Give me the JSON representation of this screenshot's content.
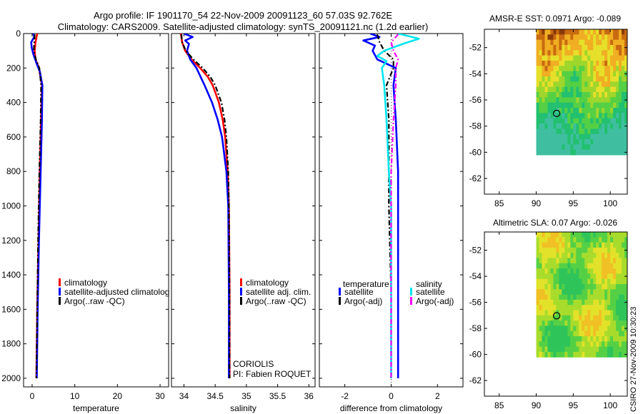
{
  "header": {
    "title_line1": "Argo profile: IF 1901170_54 22-Nov-2009 20091123_60 57.03S 92.762E",
    "title_line2": "Climatology: CARS2009. Satellite-adjusted climatology: synTS_20091121.nc (1.2d earlier)"
  },
  "side_stamp": "CSIRO 27-Nov-2009 10:30:23",
  "chart_data": [
    {
      "id": "temp",
      "type": "line",
      "xlabel": "temperature",
      "xlim": [
        -2,
        32
      ],
      "ylim": [
        2050,
        0
      ],
      "xticks": [
        0,
        10,
        20,
        30
      ],
      "yticks": [
        0,
        200,
        400,
        600,
        800,
        1000,
        1200,
        1400,
        1600,
        1800,
        2000
      ],
      "legend": [
        "climatology",
        "satellite-adjusted climatolog",
        "Argo(..raw -QC)"
      ],
      "legend_colors": [
        "#ff0000",
        "#0000ff",
        "#000000"
      ],
      "series": [
        {
          "name": "climatology",
          "color": "#ff0000",
          "dash": false,
          "depth": [
            0,
            25,
            50,
            100,
            150,
            200,
            300,
            500,
            800,
            1200,
            1600,
            2000
          ],
          "values": [
            1.2,
            1.0,
            0.8,
            0.6,
            0.8,
            1.6,
            2.3,
            2.1,
            1.8,
            1.5,
            1.2,
            1.0
          ]
        },
        {
          "name": "satellite-adjusted climatolog",
          "color": "#0000ff",
          "dash": false,
          "depth": [
            0,
            20,
            50,
            80,
            120,
            170,
            220,
            300,
            500,
            800,
            1200,
            1600,
            2000
          ],
          "values": [
            0.3,
            0.5,
            -0.2,
            -0.1,
            0.3,
            1.0,
            1.8,
            2.4,
            2.3,
            2.0,
            1.6,
            1.3,
            1.1
          ]
        },
        {
          "name": "Argo(..raw -QC)",
          "color": "#000000",
          "dash": true,
          "depth": [
            5,
            50,
            100,
            150,
            200,
            300,
            500,
            800,
            1200,
            1600,
            2000
          ],
          "values": [
            0.6,
            0.5,
            0.4,
            0.9,
            1.7,
            2.1,
            2.0,
            1.7,
            1.4,
            1.2,
            1.0
          ]
        }
      ]
    },
    {
      "id": "sal",
      "type": "line",
      "xlabel": "salinity",
      "xlim": [
        33.8,
        36.1
      ],
      "ylim": [
        2050,
        0
      ],
      "xticks": [
        34,
        34.5,
        35,
        35.5,
        36
      ],
      "legend": [
        "climatology",
        "satellite adj. clim.",
        "Argo(..raw -QC)"
      ],
      "legend_colors": [
        "#ff0000",
        "#0000ff",
        "#000000"
      ],
      "annotation_line1": "CORIOLIS",
      "annotation_line2": "PI: Fabien ROQUET",
      "series": [
        {
          "name": "climatology",
          "color": "#ff0000",
          "dash": false,
          "depth": [
            0,
            50,
            100,
            150,
            200,
            250,
            300,
            400,
            500,
            600,
            800,
            1000,
            1500,
            2000
          ],
          "values": [
            33.95,
            33.97,
            34.02,
            34.12,
            34.26,
            34.38,
            34.46,
            34.56,
            34.62,
            34.66,
            34.7,
            34.72,
            34.73,
            34.73
          ]
        },
        {
          "name": "satellite adj. clim.",
          "color": "#0000ff",
          "dash": false,
          "depth": [
            0,
            20,
            40,
            60,
            100,
            150,
            200,
            300,
            400,
            500,
            600,
            800,
            1000,
            1500,
            2000
          ],
          "values": [
            34.0,
            34.14,
            34.02,
            34.08,
            34.05,
            34.1,
            34.2,
            34.33,
            34.45,
            34.54,
            34.61,
            34.68,
            34.71,
            34.72,
            34.72
          ]
        },
        {
          "name": "Argo(..raw -QC)",
          "color": "#000000",
          "dash": true,
          "depth": [
            5,
            50,
            100,
            150,
            200,
            250,
            300,
            400,
            500,
            600,
            800,
            1000,
            1500,
            2000
          ],
          "values": [
            33.96,
            33.97,
            34.03,
            34.15,
            34.3,
            34.42,
            34.5,
            34.6,
            34.65,
            34.68,
            34.71,
            34.72,
            34.73,
            34.73
          ]
        }
      ]
    },
    {
      "id": "diff",
      "type": "line",
      "xlabel": "difference from climatology",
      "xlim": [
        -3.1,
        3.1
      ],
      "ylim": [
        2050,
        0
      ],
      "xticks": [
        -2,
        0,
        2
      ],
      "legend_title_left": "temperature",
      "legend_title_right": "salinity",
      "legend": [
        "satellite",
        "Argo(-adj)",
        "satellite",
        "Argo(-adj)"
      ],
      "legend_colors": [
        "#0000ff",
        "#000000",
        "#00e5ee",
        "#ff00ff"
      ],
      "series": [
        {
          "name": "temperature satellite",
          "color": "#0000ff",
          "dash": false,
          "depth": [
            0,
            20,
            40,
            70,
            100,
            150,
            200,
            300,
            500,
            800,
            1000,
            1500,
            2000
          ],
          "values": [
            -0.9,
            -0.5,
            -1.2,
            -0.7,
            -0.8,
            -0.6,
            0.2,
            0.1,
            0.2,
            0.3,
            0.3,
            0.3,
            0.3
          ]
        },
        {
          "name": "temperature Argo(-adj)",
          "color": "#000000",
          "dash": true,
          "depth": [
            5,
            50,
            100,
            150,
            200,
            300,
            500,
            800,
            1000,
            1500,
            2000
          ],
          "values": [
            -0.6,
            -0.5,
            -0.3,
            0.1,
            0.1,
            -0.2,
            -0.1,
            -0.1,
            -0.1,
            0.0,
            0.0
          ]
        },
        {
          "name": "salinity satellite",
          "color": "#00e5ee",
          "dash": false,
          "depth": [
            0,
            30,
            60,
            100,
            130,
            160,
            200,
            300,
            500,
            800,
            1000,
            1500,
            2000
          ],
          "values": [
            0.3,
            1.2,
            0.5,
            -0.3,
            -0.6,
            -0.2,
            -0.4,
            -0.3,
            -0.2,
            -0.1,
            0.0,
            0.0,
            0.0
          ]
        },
        {
          "name": "salinity Argo(-adj)",
          "color": "#ff00ff",
          "dash": true,
          "depth": [
            5,
            50,
            100,
            150,
            200,
            300,
            500,
            800,
            1000,
            1500,
            2000
          ],
          "values": [
            0.3,
            0.0,
            0.1,
            0.3,
            0.2,
            0.2,
            0.1,
            0.0,
            0.0,
            0.0,
            0.0
          ]
        }
      ]
    },
    {
      "id": "sst",
      "type": "heatmap",
      "title": "AMSR-E SST: 0.0971  Argo: -0.089",
      "xlim": [
        83,
        102.3
      ],
      "ylim": [
        -63.2,
        -50.6
      ],
      "xticks": [
        85,
        90,
        95,
        100
      ],
      "yticks": [
        -52,
        -54,
        -56,
        -58,
        -60,
        -62
      ],
      "data_extent": {
        "lon": [
          90,
          102.3
        ],
        "lat": [
          -60.2,
          -50.6
        ]
      },
      "colors": [
        "#3fbfa0",
        "#22c070",
        "#55d045",
        "#9ed62c",
        "#e6e02a",
        "#f0ae22",
        "#c86a10",
        "#8a3a08"
      ],
      "marker": {
        "lon": 92.76,
        "lat": -57.03
      }
    },
    {
      "id": "sla",
      "type": "heatmap",
      "title": "Altimetric SLA: 0.07  Argo: -0.026",
      "xlim": [
        83,
        102.3
      ],
      "ylim": [
        -63.2,
        -50.6
      ],
      "xticks": [
        85,
        90,
        95,
        100
      ],
      "yticks": [
        -52,
        -54,
        -56,
        -58,
        -60,
        -62
      ],
      "data_extent": {
        "lon": [
          90,
          102.3
        ],
        "lat": [
          -60.2,
          -50.6
        ]
      },
      "colors": [
        "#2ec45a",
        "#55d045",
        "#a8dc2c",
        "#e2e22a",
        "#f0c024",
        "#e08a1c",
        "#b85414"
      ],
      "marker": {
        "lon": 92.76,
        "lat": -57.03
      }
    }
  ]
}
